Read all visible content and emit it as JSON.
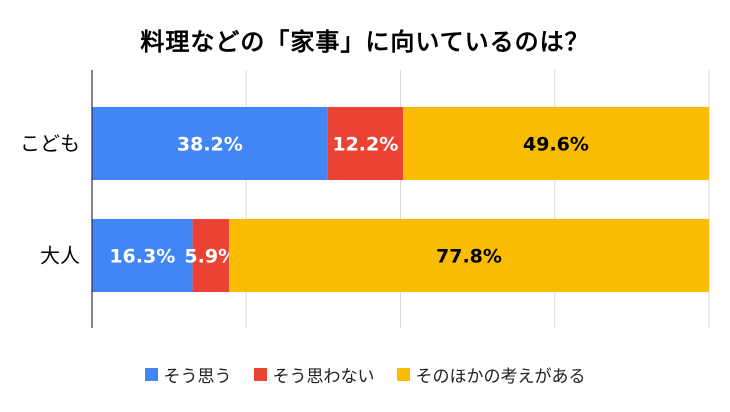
{
  "chart_data": {
    "type": "bar",
    "orientation": "horizontal",
    "stacked": true,
    "percent": true,
    "title": "料理などの「家事」に向いているのは？",
    "categories": [
      "こども",
      "大人"
    ],
    "series": [
      {
        "name": "そう思う",
        "values": [
          38.2,
          16.3
        ],
        "color": "#4285F4",
        "label_color": "#ffffff"
      },
      {
        "name": "そう思わない",
        "values": [
          12.2,
          5.9
        ],
        "color": "#EA4335",
        "label_color": "#ffffff"
      },
      {
        "name": "そのほかの考えがある",
        "values": [
          49.6,
          77.8
        ],
        "color": "#FBBC04",
        "label_color": "#000000"
      }
    ],
    "data_labels": [
      [
        "38.2%",
        "16.3%"
      ],
      [
        "12.2%",
        "5.9%"
      ],
      [
        "49.6%",
        "77.8%"
      ]
    ],
    "xlim": [
      0,
      100
    ],
    "grid": true,
    "legend_position": "bottom"
  }
}
